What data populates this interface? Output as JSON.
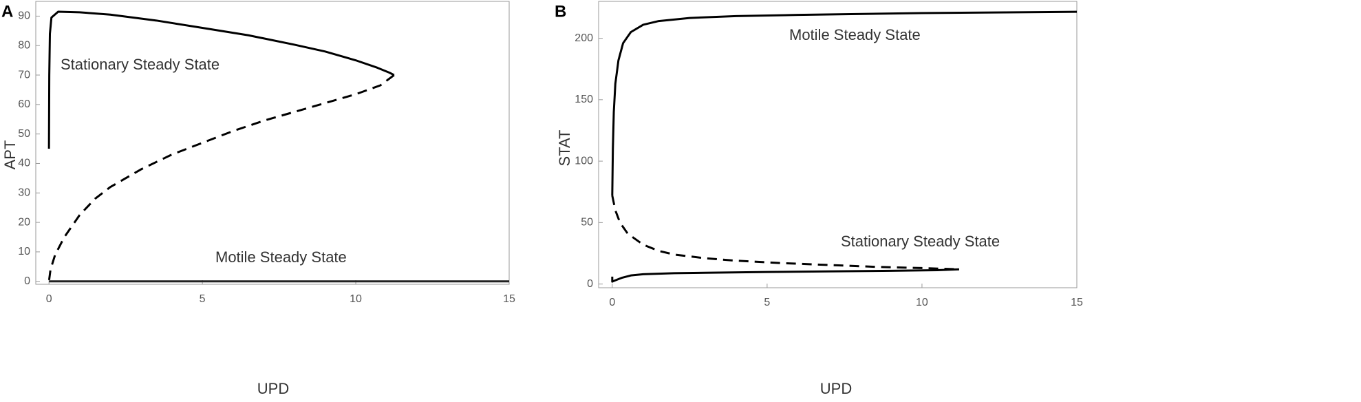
{
  "chart_data": [
    {
      "type": "line",
      "panel_label": "A",
      "x_label": "UPD",
      "y_label": "APT",
      "xlim": [
        -0.43,
        15
      ],
      "ylim": [
        -1,
        95
      ],
      "xticks": [
        0,
        5,
        10,
        15
      ],
      "yticks": [
        0,
        10,
        20,
        30,
        40,
        50,
        60,
        70,
        80,
        90
      ],
      "annotations": [
        "Stationary Steady State",
        "Motile Steady State"
      ],
      "series": [
        {
          "color": "#000000",
          "style": "solid",
          "x": [
            0,
            0.01,
            0.03,
            0.08,
            0.3,
            1,
            2,
            3.5,
            5,
            6.5,
            8,
            9,
            10,
            10.7,
            11.1,
            11.25
          ],
          "values": [
            45,
            70,
            84,
            89.5,
            91.5,
            91.3,
            90.5,
            88.5,
            86,
            83.5,
            80.3,
            78,
            75,
            72.5,
            70.8,
            70
          ]
        },
        {
          "color": "#000000",
          "style": "dashed",
          "x": [
            11.25,
            10.8,
            10,
            9,
            8,
            7,
            6,
            5,
            4,
            3,
            2,
            1.5,
            1,
            0.5,
            0.2,
            0.05,
            0
          ],
          "values": [
            70,
            66.5,
            63.5,
            60.5,
            57.5,
            54.5,
            51,
            47,
            43,
            38,
            32,
            28,
            22.5,
            15,
            9,
            4,
            0
          ]
        },
        {
          "color": "#222222",
          "style": "solid",
          "x": [
            0,
            15
          ],
          "values": [
            0,
            0
          ]
        }
      ]
    },
    {
      "type": "line",
      "panel_label": "B",
      "x_label": "UPD",
      "y_label": "STAT",
      "xlim": [
        -0.44,
        15
      ],
      "ylim": [
        -3,
        230
      ],
      "xticks": [
        0,
        5,
        10,
        15
      ],
      "yticks": [
        0,
        50,
        100,
        150,
        200
      ],
      "annotations": [
        "Motile Steady State",
        "Stationary Steady State"
      ],
      "series": [
        {
          "color": "#000000",
          "style": "solid",
          "x": [
            0,
            0.02,
            0.05,
            0.1,
            0.2,
            0.35,
            0.6,
            1,
            1.5,
            2.5,
            4,
            6,
            10,
            15
          ],
          "values": [
            72,
            110,
            140,
            163,
            182,
            196,
            205,
            211,
            214,
            216.5,
            218,
            219,
            220.5,
            221.5
          ]
        },
        {
          "color": "#000000",
          "style": "dashed",
          "x": [
            0,
            0.1,
            0.25,
            0.5,
            1,
            1.5,
            2,
            3,
            4,
            5.5,
            7,
            8.5,
            10,
            11.2
          ],
          "values": [
            72,
            60,
            50,
            41,
            32,
            27,
            24,
            21,
            19,
            17,
            15.5,
            14,
            13,
            12
          ]
        },
        {
          "color": "#000000",
          "style": "solid",
          "x": [
            0,
            0,
            0.1,
            0.3,
            0.6,
            1,
            2,
            3,
            5,
            7,
            9,
            10.5,
            11.2
          ],
          "values": [
            6,
            2,
            3,
            5,
            7,
            8,
            8.8,
            9.2,
            9.8,
            10.3,
            10.8,
            11.3,
            12
          ]
        }
      ]
    }
  ]
}
